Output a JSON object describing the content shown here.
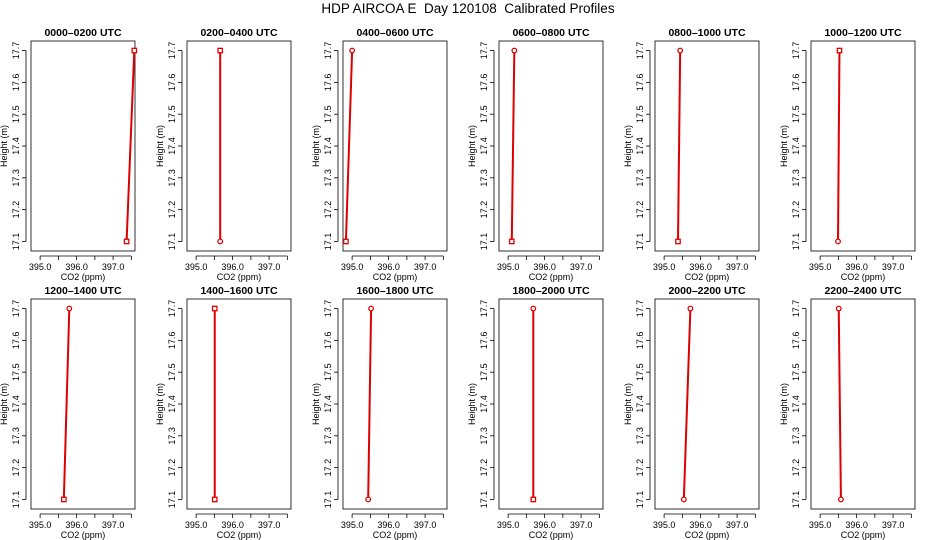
{
  "title": "HDP AIRCOA E  Day 120108  Calibrated Profiles",
  "chart_data": {
    "type": "line",
    "title": "HDP AIRCOA E  Day 120108  Calibrated Profiles",
    "xlabel": "CO2 (ppm)",
    "ylabel": "Height (m)",
    "xlim": [
      394.75,
      397.6
    ],
    "ylim": [
      17.07,
      17.73
    ],
    "xticks": [
      "395.0",
      "396.0",
      "397.0"
    ],
    "yticks": [
      "17.1",
      "17.2",
      "17.3",
      "17.4",
      "17.5",
      "17.6",
      "17.7"
    ],
    "panels": [
      {
        "title": "0000–0200 UTC",
        "x_bottom": 397.37,
        "x_top": 397.58,
        "marker_bottom": "square",
        "marker_top": "square"
      },
      {
        "title": "0200–0400 UTC",
        "x_bottom": 395.66,
        "x_top": 395.66,
        "marker_bottom": "circle",
        "marker_top": "square"
      },
      {
        "title": "0400–0600 UTC",
        "x_bottom": 394.83,
        "x_top": 395.0,
        "marker_bottom": "square",
        "marker_top": "circle"
      },
      {
        "title": "0600–0800 UTC",
        "x_bottom": 395.1,
        "x_top": 395.17,
        "marker_bottom": "square",
        "marker_top": "circle"
      },
      {
        "title": "0800–1000 UTC",
        "x_bottom": 395.38,
        "x_top": 395.44,
        "marker_bottom": "square",
        "marker_top": "circle"
      },
      {
        "title": "1000–1200 UTC",
        "x_bottom": 395.49,
        "x_top": 395.53,
        "marker_bottom": "circle",
        "marker_top": "square"
      },
      {
        "title": "1200–1400 UTC",
        "x_bottom": 395.65,
        "x_top": 395.8,
        "marker_bottom": "square",
        "marker_top": "circle"
      },
      {
        "title": "1400–1600 UTC",
        "x_bottom": 395.51,
        "x_top": 395.51,
        "marker_bottom": "square",
        "marker_top": "square"
      },
      {
        "title": "1600–1800 UTC",
        "x_bottom": 395.44,
        "x_top": 395.52,
        "marker_bottom": "circle",
        "marker_top": "circle"
      },
      {
        "title": "1800–2000 UTC",
        "x_bottom": 395.69,
        "x_top": 395.69,
        "marker_bottom": "square",
        "marker_top": "circle"
      },
      {
        "title": "2000–2200 UTC",
        "x_bottom": 395.54,
        "x_top": 395.72,
        "marker_bottom": "circle",
        "marker_top": "circle"
      },
      {
        "title": "2200–2400 UTC",
        "x_bottom": 395.57,
        "x_top": 395.51,
        "marker_bottom": "circle",
        "marker_top": "circle"
      }
    ],
    "y_bottom": 17.1,
    "y_top": 17.7,
    "line_color": "#dd0000"
  }
}
